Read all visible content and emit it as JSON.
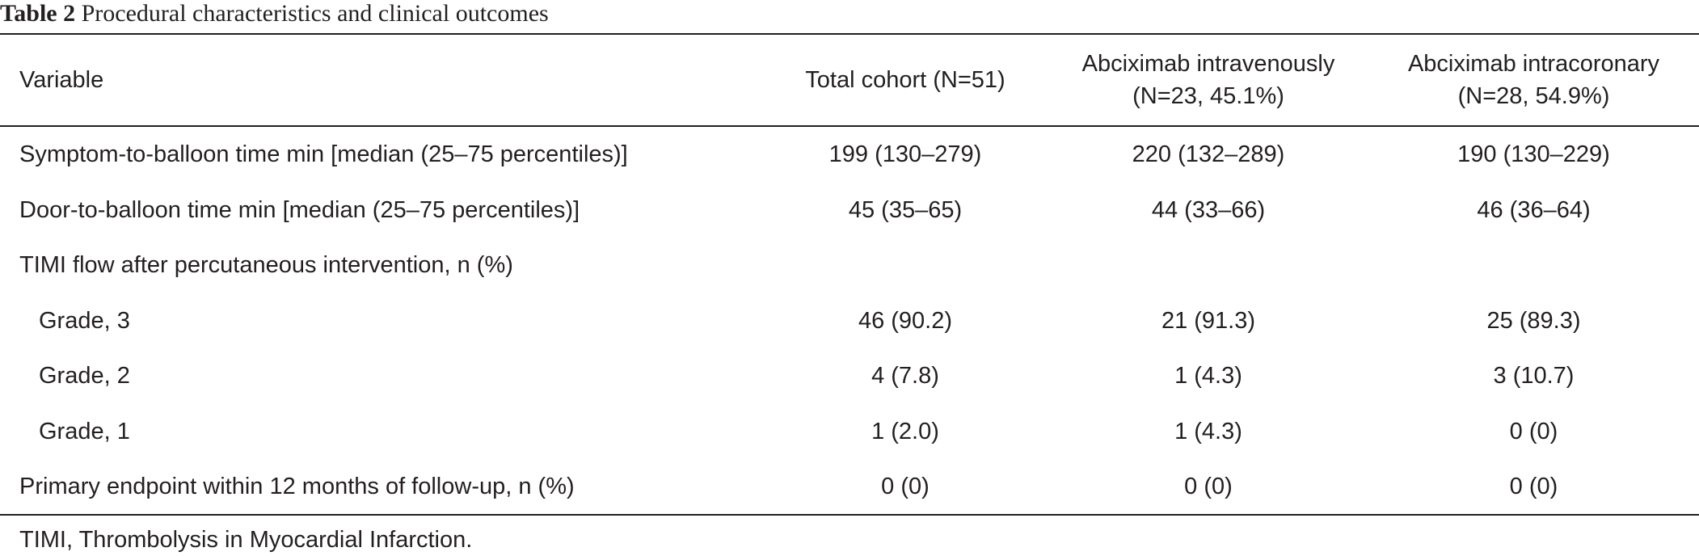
{
  "caption": {
    "label": "Table 2",
    "title": "Procedural characteristics and clinical outcomes"
  },
  "headers": [
    [
      "Variable"
    ],
    [
      "Total cohort (N=51)"
    ],
    [
      "Abciximab intravenously",
      "(N=23, 45.1%)"
    ],
    [
      "Abciximab intracoronary",
      "(N=28, 54.9%)"
    ]
  ],
  "rows": [
    {
      "variable": "Symptom-to-balloon time min [median (25–75 percentiles)]",
      "total": "199 (130–279)",
      "iv": "220 (132–289)",
      "ic": "190 (130–229)",
      "indent": false
    },
    {
      "variable": "Door-to-balloon time min [median (25–75 percentiles)]",
      "total": "45 (35–65)",
      "iv": "44 (33–66)",
      "ic": "46 (36–64)",
      "indent": false
    },
    {
      "variable": "TIMI flow after percutaneous intervention, n (%)",
      "total": "",
      "iv": "",
      "ic": "",
      "indent": false
    },
    {
      "variable": "Grade, 3",
      "total": "46 (90.2)",
      "iv": "21 (91.3)",
      "ic": "25 (89.3)",
      "indent": true
    },
    {
      "variable": "Grade, 2",
      "total": "4 (7.8)",
      "iv": "1 (4.3)",
      "ic": "3 (10.7)",
      "indent": true
    },
    {
      "variable": "Grade, 1",
      "total": "1 (2.0)",
      "iv": "1 (4.3)",
      "ic": "0 (0)",
      "indent": true
    },
    {
      "variable": "Primary endpoint within 12 months of follow-up, n (%)",
      "total": "0 (0)",
      "iv": "0 (0)",
      "ic": "0 (0)",
      "indent": false
    }
  ],
  "footnote": "TIMI, Thrombolysis in Myocardial Infarction."
}
